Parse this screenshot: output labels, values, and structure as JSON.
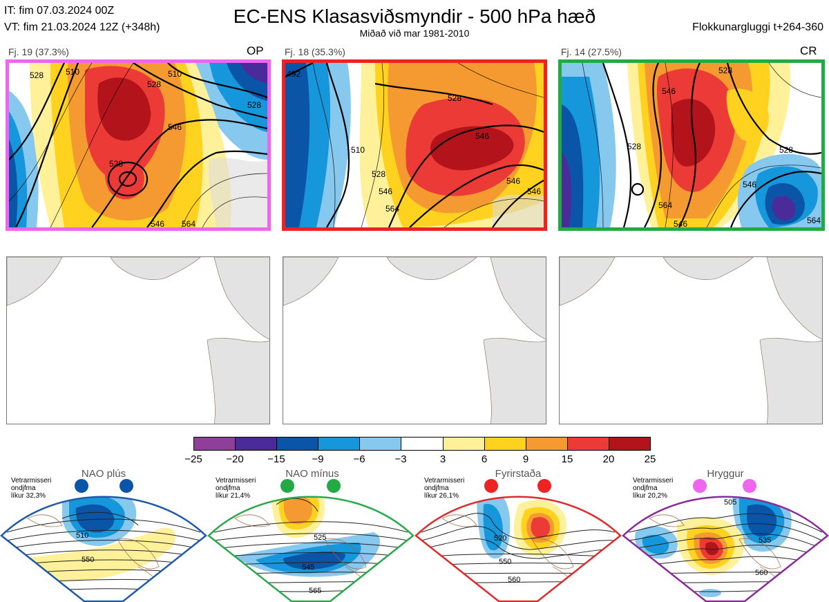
{
  "header": {
    "it_line": "IT: fim 07.03.2024 00Z",
    "vt_line": "VT: fim 21.03.2024 12Z  (+348h)",
    "title": "EC-ENS Klasasviðsmyndir - 500 hPa hæð",
    "subtitle": "Miðað við mar 1981-2010",
    "window": "Flokkunargluggi t+264-360"
  },
  "clusters": [
    {
      "label": "Fj. 19 (37.3%)",
      "tag": "OP",
      "border_color": "#ee66ee"
    },
    {
      "label": "Fj. 18 (35.3%)",
      "tag": "",
      "border_color": "#ee2222"
    },
    {
      "label": "Fj. 14 (27.5%)",
      "tag": "CR",
      "border_color": "#22aa44"
    }
  ],
  "colorbar": {
    "ticks": [
      "−25",
      "−20",
      "−15",
      "−9",
      "−6",
      "−3",
      "3",
      "6",
      "9",
      "15",
      "20",
      "25"
    ],
    "colors": [
      "#8e3f98",
      "#4b2a9a",
      "#0a55a8",
      "#1696db",
      "#86c8ee",
      "#ffffff",
      "#fff19a",
      "#ffd21f",
      "#f59a30",
      "#ec3a36",
      "#b3141b"
    ]
  },
  "regimes": [
    {
      "name": "NAO plús",
      "note1": "Vetrarmisseri",
      "note2": "ondjfma",
      "note3": "líkur 32,3%",
      "color": "#1e5aa8",
      "dot": "#0b55a8",
      "labels": [
        "510",
        "550"
      ]
    },
    {
      "name": "NAO mínus",
      "note1": "Vetrarmisseri",
      "note2": "ondjfma",
      "note3": "líkur 21,4%",
      "color": "#2aa84a",
      "dot": "#22aa44",
      "labels": [
        "525",
        "545",
        "565"
      ]
    },
    {
      "name": "Fyrirstaða",
      "note1": "Vetrarmisseri",
      "note2": "ondjfma",
      "note3": "líkur 26,1%",
      "color": "#e02a2a",
      "dot": "#ee2222",
      "labels": [
        "520",
        "550",
        "560"
      ]
    },
    {
      "name": "Hryggur",
      "note1": "Vetrarmisseri",
      "note2": "ondjfma",
      "note3": "líkur 20,2%",
      "color": "#8a2a9a",
      "dot": "#ee66ee",
      "labels": [
        "505",
        "535",
        "560"
      ]
    }
  ],
  "contour_labels": {
    "p1": [
      "528",
      "510",
      "528",
      "510",
      "528",
      "546",
      "528",
      "546",
      "564"
    ],
    "p2": [
      "492",
      "528",
      "546",
      "510",
      "528",
      "546",
      "564",
      "546",
      "546"
    ],
    "p3": [
      "546",
      "528",
      "528",
      "528",
      "546",
      "564",
      "546",
      "564"
    ]
  }
}
